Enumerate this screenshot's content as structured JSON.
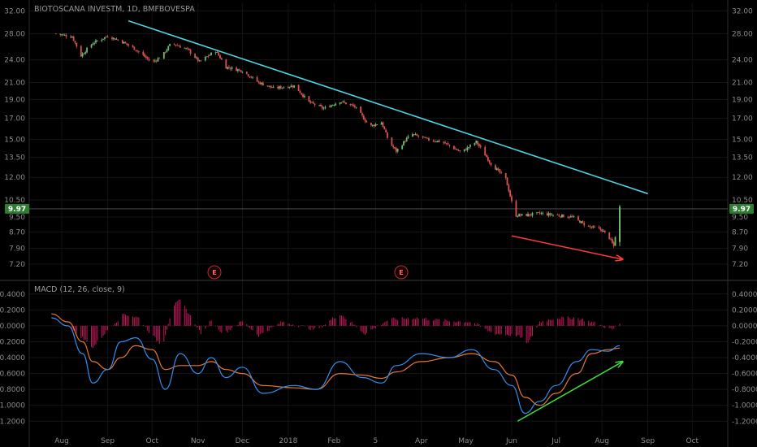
{
  "header": {
    "symbol_title": "BIOTOSCANA INVESTM, 1D, BMFBOVESPA",
    "macd_title": "MACD (12, 26, close, 9)"
  },
  "colors": {
    "background": "#000000",
    "up_candle": "#6fb86f",
    "down_candle": "#d9534f",
    "trendline": "#4fd1e0",
    "red_arrow": "#ff3b3b",
    "green_arrow": "#39e23c",
    "macd_line": "#2f8ff0",
    "signal_line": "#e8762b",
    "histogram": "#c2185b",
    "badge": "#2e7d32"
  },
  "current_price": {
    "value": 9.97,
    "label_left": "9.97",
    "label_right": "9.97"
  },
  "earnings_markers": [
    "E",
    "E"
  ],
  "chart_data": [
    {
      "type": "candlestick",
      "title": "BIOTOSCANA INVESTM, 1D, BMFBOVESPA",
      "y_scale": "log",
      "ylim": [
        6.6,
        33.5
      ],
      "y_ticks": [
        "32.00",
        "28.00",
        "24.00",
        "21.00",
        "19.00",
        "17.00",
        "15.00",
        "13.50",
        "12.00",
        "10.50",
        "9.50",
        "8.70",
        "7.90",
        "7.20"
      ],
      "x_ticks": [
        "Aug",
        "Sep",
        "Oct",
        "Nov",
        "Dec",
        "2018",
        "Feb",
        "5",
        "Apr",
        "May",
        "Jun",
        "Jul",
        "Aug",
        "Sep",
        "Oct"
      ],
      "approx_close_path": [
        {
          "date": "2017-07-28",
          "close": 28.0
        },
        {
          "date": "2017-08-08",
          "close": 27.5
        },
        {
          "date": "2017-08-14",
          "close": 24.6
        },
        {
          "date": "2017-08-22",
          "close": 26.5
        },
        {
          "date": "2017-09-01",
          "close": 27.6
        },
        {
          "date": "2017-09-10",
          "close": 26.8
        },
        {
          "date": "2017-09-20",
          "close": 25.5
        },
        {
          "date": "2017-10-01",
          "close": 23.6
        },
        {
          "date": "2017-10-08",
          "close": 24.6
        },
        {
          "date": "2017-10-14",
          "close": 26.5
        },
        {
          "date": "2017-10-25",
          "close": 25.5
        },
        {
          "date": "2017-11-02",
          "close": 23.7
        },
        {
          "date": "2017-11-13",
          "close": 25.3
        },
        {
          "date": "2017-11-20",
          "close": 23.0
        },
        {
          "date": "2017-12-01",
          "close": 22.5
        },
        {
          "date": "2017-12-12",
          "close": 21.0
        },
        {
          "date": "2017-12-22",
          "close": 20.3
        },
        {
          "date": "2018-01-05",
          "close": 20.6
        },
        {
          "date": "2018-01-15",
          "close": 18.7
        },
        {
          "date": "2018-01-25",
          "close": 18.0
        },
        {
          "date": "2018-02-05",
          "close": 18.8
        },
        {
          "date": "2018-02-15",
          "close": 18.2
        },
        {
          "date": "2018-02-25",
          "close": 16.2
        },
        {
          "date": "2018-03-05",
          "close": 16.6
        },
        {
          "date": "2018-03-10",
          "close": 14.8
        },
        {
          "date": "2018-03-15",
          "close": 14.0
        },
        {
          "date": "2018-03-25",
          "close": 15.5
        },
        {
          "date": "2018-04-05",
          "close": 15.0
        },
        {
          "date": "2018-04-15",
          "close": 14.8
        },
        {
          "date": "2018-04-28",
          "close": 13.9
        },
        {
          "date": "2018-05-08",
          "close": 14.8
        },
        {
          "date": "2018-05-18",
          "close": 13.0
        },
        {
          "date": "2018-05-28",
          "close": 11.9
        },
        {
          "date": "2018-06-03",
          "close": 9.6
        },
        {
          "date": "2018-06-10",
          "close": 9.6
        },
        {
          "date": "2018-06-20",
          "close": 9.7
        },
        {
          "date": "2018-07-01",
          "close": 9.6
        },
        {
          "date": "2018-07-12",
          "close": 9.5
        },
        {
          "date": "2018-07-22",
          "close": 9.0
        },
        {
          "date": "2018-08-01",
          "close": 8.8
        },
        {
          "date": "2018-08-06",
          "close": 8.4
        },
        {
          "date": "2018-08-09",
          "close": 8.0
        },
        {
          "date": "2018-08-13",
          "close": 9.97
        }
      ],
      "annotations": [
        {
          "type": "trendline",
          "from": {
            "date": "2017-09-15",
            "price": 30.2
          },
          "to": {
            "date": "2018-09-01",
            "price": 10.9
          }
        },
        {
          "type": "arrow",
          "color": "red",
          "from": {
            "date": "2018-06-01",
            "price": 8.5
          },
          "to": {
            "date": "2018-08-15",
            "price": 7.4
          }
        }
      ]
    },
    {
      "type": "line",
      "title": "MACD (12, 26, close, 9)",
      "ylim": [
        -1.32,
        0.5
      ],
      "y_ticks": [
        "0.4000",
        "0.2000",
        "0.0000",
        "-0.2000",
        "-0.4000",
        "-0.6000",
        "-0.8000",
        "-1.0000",
        "-1.2000"
      ],
      "series": [
        {
          "name": "MACD",
          "values": [
            {
              "date": "2017-07-25",
              "y": 0.1
            },
            {
              "date": "2017-08-05",
              "y": 0.0
            },
            {
              "date": "2017-08-15",
              "y": -0.35
            },
            {
              "date": "2017-08-22",
              "y": -0.72
            },
            {
              "date": "2017-09-01",
              "y": -0.55
            },
            {
              "date": "2017-09-10",
              "y": -0.2
            },
            {
              "date": "2017-09-20",
              "y": -0.15
            },
            {
              "date": "2017-10-01",
              "y": -0.42
            },
            {
              "date": "2017-10-10",
              "y": -0.8
            },
            {
              "date": "2017-10-20",
              "y": -0.35
            },
            {
              "date": "2017-11-01",
              "y": -0.6
            },
            {
              "date": "2017-11-10",
              "y": -0.4
            },
            {
              "date": "2017-11-20",
              "y": -0.65
            },
            {
              "date": "2017-12-01",
              "y": -0.52
            },
            {
              "date": "2017-12-15",
              "y": -0.85
            },
            {
              "date": "2018-01-05",
              "y": -0.75
            },
            {
              "date": "2018-01-20",
              "y": -0.8
            },
            {
              "date": "2018-02-05",
              "y": -0.45
            },
            {
              "date": "2018-02-20",
              "y": -0.65
            },
            {
              "date": "2018-03-05",
              "y": -0.72
            },
            {
              "date": "2018-03-15",
              "y": -0.5
            },
            {
              "date": "2018-04-01",
              "y": -0.35
            },
            {
              "date": "2018-04-20",
              "y": -0.4
            },
            {
              "date": "2018-05-05",
              "y": -0.3
            },
            {
              "date": "2018-05-20",
              "y": -0.55
            },
            {
              "date": "2018-06-01",
              "y": -0.75
            },
            {
              "date": "2018-06-10",
              "y": -1.1
            },
            {
              "date": "2018-06-20",
              "y": -0.95
            },
            {
              "date": "2018-07-01",
              "y": -0.75
            },
            {
              "date": "2018-07-15",
              "y": -0.45
            },
            {
              "date": "2018-07-25",
              "y": -0.3
            },
            {
              "date": "2018-08-05",
              "y": -0.32
            },
            {
              "date": "2018-08-13",
              "y": -0.25
            }
          ]
        },
        {
          "name": "Signal",
          "values": [
            {
              "date": "2017-07-25",
              "y": 0.15
            },
            {
              "date": "2017-08-05",
              "y": 0.05
            },
            {
              "date": "2017-08-15",
              "y": -0.2
            },
            {
              "date": "2017-08-22",
              "y": -0.45
            },
            {
              "date": "2017-09-01",
              "y": -0.55
            },
            {
              "date": "2017-09-10",
              "y": -0.4
            },
            {
              "date": "2017-09-20",
              "y": -0.25
            },
            {
              "date": "2017-10-01",
              "y": -0.3
            },
            {
              "date": "2017-10-10",
              "y": -0.55
            },
            {
              "date": "2017-10-20",
              "y": -0.5
            },
            {
              "date": "2017-11-01",
              "y": -0.5
            },
            {
              "date": "2017-11-10",
              "y": -0.45
            },
            {
              "date": "2017-11-20",
              "y": -0.55
            },
            {
              "date": "2017-12-01",
              "y": -0.6
            },
            {
              "date": "2017-12-15",
              "y": -0.75
            },
            {
              "date": "2018-01-05",
              "y": -0.78
            },
            {
              "date": "2018-01-20",
              "y": -0.8
            },
            {
              "date": "2018-02-05",
              "y": -0.6
            },
            {
              "date": "2018-02-20",
              "y": -0.62
            },
            {
              "date": "2018-03-05",
              "y": -0.66
            },
            {
              "date": "2018-03-15",
              "y": -0.58
            },
            {
              "date": "2018-04-01",
              "y": -0.45
            },
            {
              "date": "2018-04-20",
              "y": -0.4
            },
            {
              "date": "2018-05-05",
              "y": -0.35
            },
            {
              "date": "2018-05-20",
              "y": -0.45
            },
            {
              "date": "2018-06-01",
              "y": -0.62
            },
            {
              "date": "2018-06-10",
              "y": -0.9
            },
            {
              "date": "2018-06-20",
              "y": -1.0
            },
            {
              "date": "2018-07-01",
              "y": -0.85
            },
            {
              "date": "2018-07-15",
              "y": -0.6
            },
            {
              "date": "2018-07-25",
              "y": -0.35
            },
            {
              "date": "2018-08-05",
              "y": -0.3
            },
            {
              "date": "2018-08-13",
              "y": -0.28
            }
          ]
        },
        {
          "name": "Histogram",
          "kind": "bars",
          "values": [
            {
              "date": "2017-08-08",
              "y": -0.05
            },
            {
              "date": "2017-08-15",
              "y": -0.15
            },
            {
              "date": "2017-08-22",
              "y": -0.27
            },
            {
              "date": "2017-09-01",
              "y": -0.05
            },
            {
              "date": "2017-09-12",
              "y": 0.15
            },
            {
              "date": "2017-09-22",
              "y": 0.1
            },
            {
              "date": "2017-10-01",
              "y": -0.12
            },
            {
              "date": "2017-10-08",
              "y": -0.25
            },
            {
              "date": "2017-10-15",
              "y": 0.25
            },
            {
              "date": "2017-10-20",
              "y": 0.32
            },
            {
              "date": "2017-10-27",
              "y": 0.12
            },
            {
              "date": "2017-11-04",
              "y": -0.12
            },
            {
              "date": "2017-11-10",
              "y": 0.08
            },
            {
              "date": "2017-11-18",
              "y": -0.1
            },
            {
              "date": "2017-12-01",
              "y": 0.06
            },
            {
              "date": "2017-12-12",
              "y": -0.12
            },
            {
              "date": "2017-12-28",
              "y": 0.05
            },
            {
              "date": "2018-01-20",
              "y": -0.05
            },
            {
              "date": "2018-02-05",
              "y": 0.15
            },
            {
              "date": "2018-02-22",
              "y": -0.1
            },
            {
              "date": "2018-03-10",
              "y": 0.08
            },
            {
              "date": "2018-03-28",
              "y": 0.1
            },
            {
              "date": "2018-04-20",
              "y": 0.06
            },
            {
              "date": "2018-05-05",
              "y": 0.05
            },
            {
              "date": "2018-05-20",
              "y": -0.1
            },
            {
              "date": "2018-06-05",
              "y": -0.12
            },
            {
              "date": "2018-06-12",
              "y": -0.22
            },
            {
              "date": "2018-06-20",
              "y": 0.05
            },
            {
              "date": "2018-07-01",
              "y": 0.1
            },
            {
              "date": "2018-07-15",
              "y": 0.1
            },
            {
              "date": "2018-07-28",
              "y": 0.03
            },
            {
              "date": "2018-08-08",
              "y": -0.05
            },
            {
              "date": "2018-08-13",
              "y": 0.03
            }
          ]
        }
      ],
      "annotations": [
        {
          "type": "arrow",
          "color": "green",
          "from": {
            "date": "2018-06-05",
            "y": -1.2
          },
          "to": {
            "date": "2018-08-15",
            "y": -0.45
          }
        }
      ]
    }
  ]
}
